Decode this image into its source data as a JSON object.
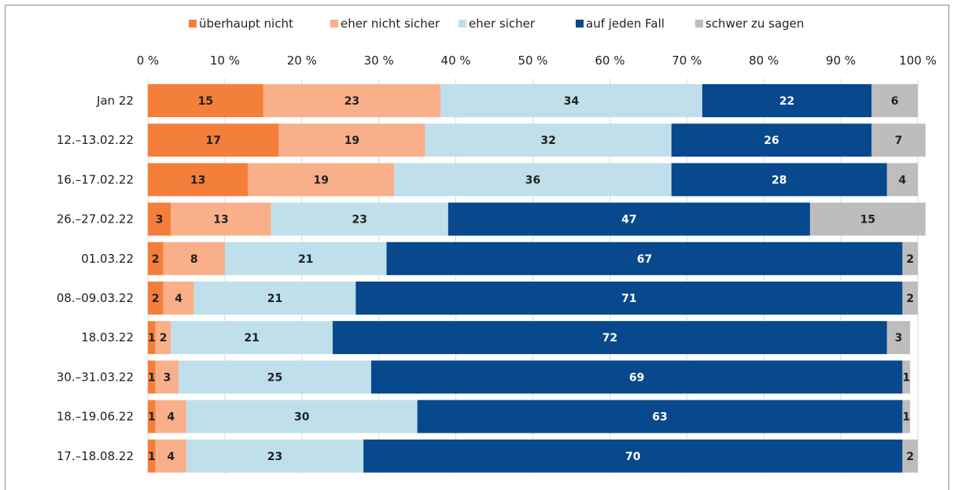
{
  "chart_data": {
    "type": "bar",
    "orientation": "horizontal",
    "stacked": true,
    "title": "",
    "xlabel": "",
    "ylabel": "",
    "xlim": [
      0,
      100
    ],
    "x_ticks": [
      "0 %",
      "10 %",
      "20 %",
      "30 %",
      "40 %",
      "50 %",
      "60 %",
      "70 %",
      "80 %",
      "90 %",
      "100 %"
    ],
    "grid": "vertical",
    "legend_position": "top",
    "categories": [
      "Jan 22",
      "12.–13.02.22",
      "16.–17.02.22",
      "26.–27.02.22",
      "01.03.22",
      "08.–09.03.22",
      "18.03.22",
      "30.–31.03.22",
      "18.–19.06.22",
      "17.–18.08.22"
    ],
    "series": [
      {
        "name": "überhaupt nicht",
        "color": "#f47f3b",
        "label_color": "#222222",
        "values": [
          15,
          17,
          13,
          3,
          2,
          2,
          1,
          1,
          1,
          1
        ]
      },
      {
        "name": "eher nicht sicher",
        "color": "#f9b08a",
        "label_color": "#222222",
        "values": [
          23,
          19,
          19,
          13,
          8,
          4,
          2,
          3,
          4,
          4
        ]
      },
      {
        "name": "eher sicher",
        "color": "#bfe0ea",
        "label_color": "#222222",
        "values": [
          34,
          32,
          36,
          23,
          21,
          21,
          21,
          25,
          30,
          23
        ]
      },
      {
        "name": "auf jeden Fall",
        "color": "#08488c",
        "label_color": "#ffffff",
        "values": [
          22,
          26,
          28,
          47,
          67,
          71,
          72,
          69,
          63,
          70
        ]
      },
      {
        "name": "schwer zu sagen",
        "color": "#bdbdbd",
        "label_color": "#222222",
        "values": [
          6,
          7,
          4,
          15,
          2,
          2,
          3,
          1,
          1,
          2
        ]
      }
    ]
  }
}
